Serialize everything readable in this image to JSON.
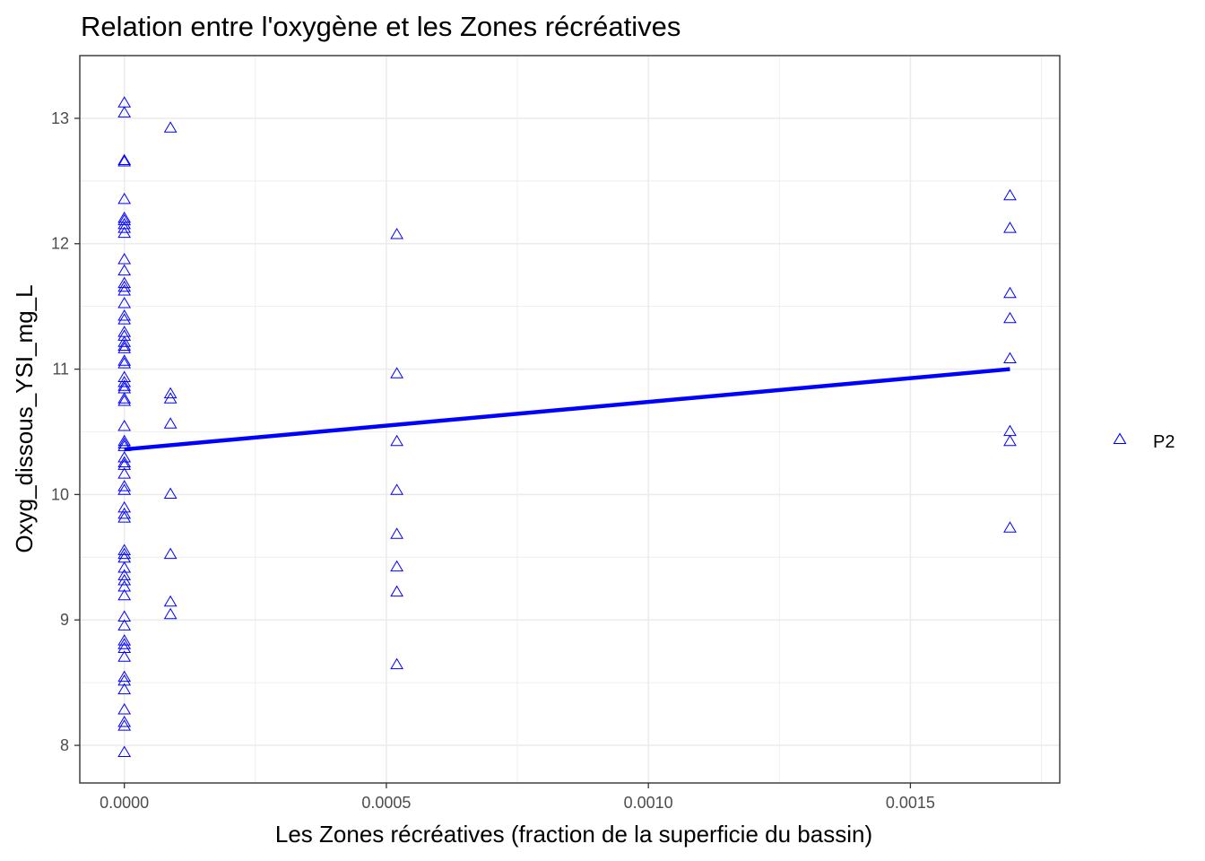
{
  "chart_data": {
    "type": "scatter",
    "title": "Relation entre l'oxygène et les Zones récréatives",
    "xlabel": "Les Zones récréatives (fraction de la superficie du bassin)",
    "ylabel": "Oxyg_dissous_YSI_mg_L",
    "xlim": [
      -8.5e-05,
      0.001785
    ],
    "ylim": [
      7.7,
      13.5
    ],
    "x_ticks": [
      0,
      0.0005,
      0.001,
      0.0015
    ],
    "x_tick_labels": [
      "0.0000",
      "0.0005",
      "0.0010",
      "0.0015"
    ],
    "y_ticks": [
      8,
      9,
      10,
      11,
      12,
      13
    ],
    "y_tick_labels": [
      "8",
      "9",
      "10",
      "11",
      "12",
      "13"
    ],
    "grid": true,
    "legend_position": "right",
    "marker": "open-triangle",
    "colors": {
      "points": "#0000ff",
      "trend": "#0000ff",
      "grid": "#ebebeb",
      "border": "#333333"
    },
    "series": [
      {
        "name": "P2",
        "points": [
          [
            0,
            13.13
          ],
          [
            0,
            13.05
          ],
          [
            0,
            12.67
          ],
          [
            0,
            12.66
          ],
          [
            0,
            12.36
          ],
          [
            0,
            12.21
          ],
          [
            0,
            12.19
          ],
          [
            0,
            12.16
          ],
          [
            0,
            12.13
          ],
          [
            0,
            12.09
          ],
          [
            0,
            11.88
          ],
          [
            0,
            11.79
          ],
          [
            0,
            11.69
          ],
          [
            0,
            11.66
          ],
          [
            0,
            11.63
          ],
          [
            0,
            11.53
          ],
          [
            0,
            11.43
          ],
          [
            0,
            11.4
          ],
          [
            0,
            11.3
          ],
          [
            0,
            11.27
          ],
          [
            0,
            11.22
          ],
          [
            0,
            11.19
          ],
          [
            0,
            11.17
          ],
          [
            0,
            11.07
          ],
          [
            0,
            11.05
          ],
          [
            0,
            10.94
          ],
          [
            0,
            10.9
          ],
          [
            0,
            10.87
          ],
          [
            0,
            10.85
          ],
          [
            0,
            10.77
          ],
          [
            0,
            10.75
          ],
          [
            0,
            10.55
          ],
          [
            0,
            10.43
          ],
          [
            0,
            10.41
          ],
          [
            0,
            10.39
          ],
          [
            0,
            10.3
          ],
          [
            0,
            10.26
          ],
          [
            0,
            10.24
          ],
          [
            0,
            10.17
          ],
          [
            0,
            10.07
          ],
          [
            0,
            10.04
          ],
          [
            0,
            9.9
          ],
          [
            0,
            9.85
          ],
          [
            0,
            9.82
          ],
          [
            0,
            9.56
          ],
          [
            0,
            9.53
          ],
          [
            0,
            9.5
          ],
          [
            0,
            9.42
          ],
          [
            0,
            9.36
          ],
          [
            0,
            9.32
          ],
          [
            0,
            9.27
          ],
          [
            0,
            9.2
          ],
          [
            0,
            9.03
          ],
          [
            0,
            8.96
          ],
          [
            0,
            8.84
          ],
          [
            0,
            8.81
          ],
          [
            0,
            8.78
          ],
          [
            0,
            8.71
          ],
          [
            0,
            8.55
          ],
          [
            0,
            8.52
          ],
          [
            0,
            8.45
          ],
          [
            0,
            8.29
          ],
          [
            0,
            8.19
          ],
          [
            0,
            8.16
          ],
          [
            0,
            7.95
          ],
          [
            8.8e-05,
            12.93
          ],
          [
            8.8e-05,
            10.81
          ],
          [
            8.8e-05,
            10.77
          ],
          [
            8.8e-05,
            10.57
          ],
          [
            8.8e-05,
            10.01
          ],
          [
            8.8e-05,
            9.53
          ],
          [
            8.8e-05,
            9.15
          ],
          [
            8.8e-05,
            9.05
          ],
          [
            0.00052,
            12.08
          ],
          [
            0.00052,
            10.97
          ],
          [
            0.00052,
            10.43
          ],
          [
            0.00052,
            10.04
          ],
          [
            0.00052,
            9.69
          ],
          [
            0.00052,
            9.43
          ],
          [
            0.00052,
            9.23
          ],
          [
            0.00052,
            8.65
          ],
          [
            0.00169,
            12.39
          ],
          [
            0.00169,
            12.13
          ],
          [
            0.00169,
            11.61
          ],
          [
            0.00169,
            11.41
          ],
          [
            0.00169,
            11.09
          ],
          [
            0.00169,
            10.51
          ],
          [
            0.00169,
            10.43
          ],
          [
            0.00169,
            9.74
          ]
        ]
      }
    ],
    "trend_line": {
      "x": [
        0,
        0.00169
      ],
      "y": [
        10.36,
        11.0
      ]
    }
  }
}
